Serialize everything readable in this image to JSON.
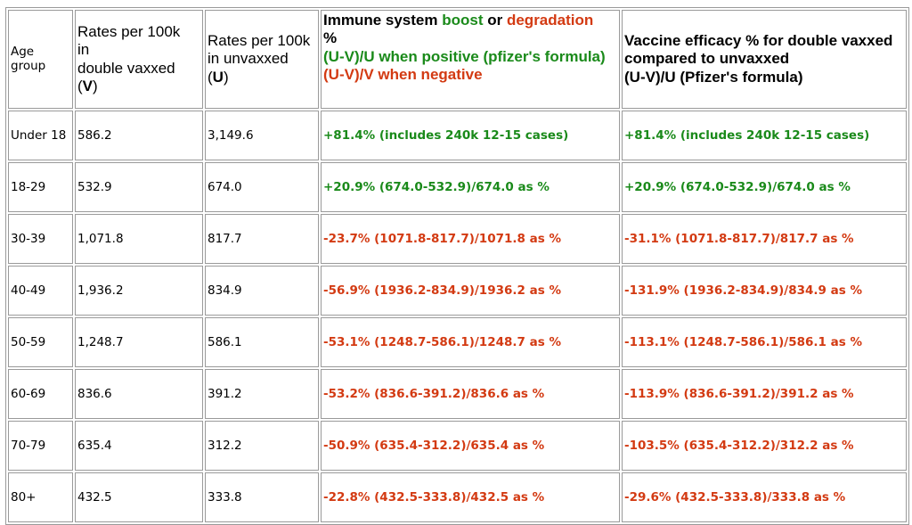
{
  "header": {
    "age_group": "Age group",
    "vaxxed_line1": "Rates per 100k",
    "vaxxed_line2": "in",
    "vaxxed_line3": "double vaxxed",
    "vaxxed_open": "(",
    "vaxxed_symbol": "V",
    "vaxxed_close": ")",
    "unvaxxed_line1": "Rates per 100k",
    "unvaxxed_line2": "in unvaxxed",
    "unvaxxed_open": "(",
    "unvaxxed_symbol": "U",
    "unvaxxed_close": ")",
    "immune_prefix": "Immune system ",
    "immune_boost": "boost",
    "immune_or": " or ",
    "immune_degradation": "degradation",
    "immune_pct": "%",
    "immune_positive": "(U-V)/U when positive (pfizer's formula)",
    "immune_negative": "(U-V)/V when negative",
    "efficacy_line1": "Vaccine efficacy % for double vaxxed",
    "efficacy_line2": "compared to unvaxxed",
    "efficacy_line3": "(U-V)/U (Pfizer's formula)"
  },
  "colors": {
    "green": "#1a8a1a",
    "red": "#d33a12"
  },
  "rows": [
    {
      "age": "Under 18",
      "v": "586.2",
      "u": "3,149.6",
      "immune": "+81.4% (includes 240k 12-15 cases)",
      "efficacy": "+81.4% (includes 240k 12-15 cases)",
      "immune_tone": "green",
      "efficacy_tone": "green"
    },
    {
      "age": "18-29",
      "v": "532.9",
      "u": "674.0",
      "immune": "+20.9% (674.0-532.9)/674.0 as %",
      "efficacy": "+20.9% (674.0-532.9)/674.0 as %",
      "immune_tone": "green",
      "efficacy_tone": "green"
    },
    {
      "age": "30-39",
      "v": "1,071.8",
      "u": "817.7",
      "immune": "-23.7%  (1071.8-817.7)/1071.8 as %",
      "efficacy": "-31.1%  (1071.8-817.7)/817.7 as %",
      "immune_tone": "red",
      "efficacy_tone": "red"
    },
    {
      "age": "40-49",
      "v": "1,936.2",
      "u": "834.9",
      "immune": "-56.9%  (1936.2-834.9)/1936.2 as %",
      "efficacy": "-131.9%  (1936.2-834.9)/834.9 as %",
      "immune_tone": "red",
      "efficacy_tone": "red"
    },
    {
      "age": "50-59",
      "v": "1,248.7",
      "u": "586.1",
      "immune": "-53.1%  (1248.7-586.1)/1248.7 as %",
      "efficacy": "-113.1%  (1248.7-586.1)/586.1 as %",
      "immune_tone": "red",
      "efficacy_tone": "red"
    },
    {
      "age": "60-69",
      "v": "836.6",
      "u": "391.2",
      "immune": "-53.2%  (836.6-391.2)/836.6 as %",
      "efficacy": "-113.9%  (836.6-391.2)/391.2 as %",
      "immune_tone": "red",
      "efficacy_tone": "red"
    },
    {
      "age": "70-79",
      "v": "635.4",
      "u": "312.2",
      "immune": "-50.9%  (635.4-312.2)/635.4 as %",
      "efficacy": "-103.5%  (635.4-312.2)/312.2 as %",
      "immune_tone": "red",
      "efficacy_tone": "red"
    },
    {
      "age": "80+",
      "v": "432.5",
      "u": "333.8",
      "immune": "-22.8%  (432.5-333.8)/432.5 as %",
      "efficacy": "-29.6%  (432.5-333.8)/333.8 as %",
      "immune_tone": "red",
      "efficacy_tone": "red"
    }
  ]
}
